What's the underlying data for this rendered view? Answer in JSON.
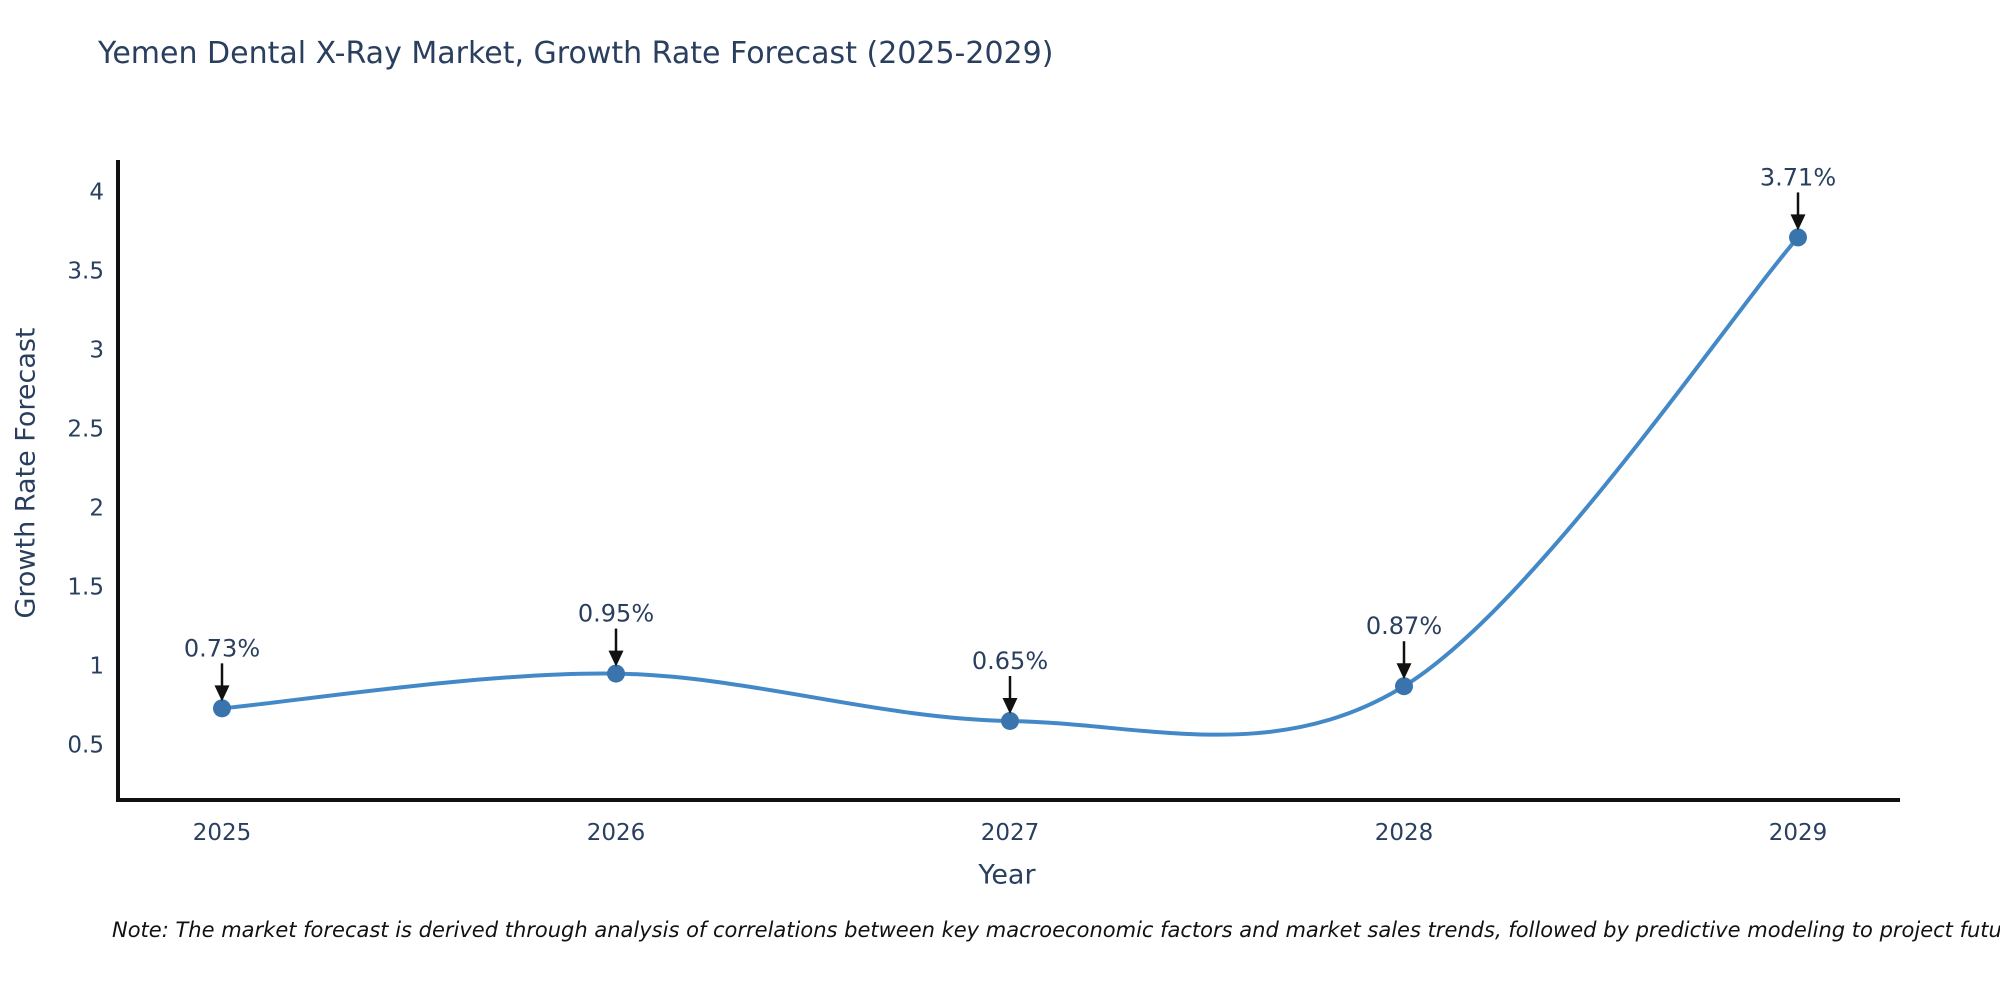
{
  "title": "Yemen Dental X-Ray Market, Growth Rate Forecast (2025-2029)",
  "note": "Note: The market forecast is derived through analysis of correlations between key macroeconomic factors and market sales trends, followed by predictive modeling to project future sales",
  "chart_data": {
    "type": "line",
    "line_shape": "spline",
    "title": "Yemen Dental X-Ray Market, Growth Rate Forecast (2025-2029)",
    "xlabel": "Year",
    "ylabel": "Growth Rate Forecast",
    "categories": [
      "2025",
      "2026",
      "2027",
      "2028",
      "2029"
    ],
    "values": [
      0.73,
      0.95,
      0.65,
      0.87,
      3.71
    ],
    "point_labels": [
      "0.73%",
      "0.95%",
      "0.65%",
      "0.87%",
      "3.71%"
    ],
    "y_ticks": [
      0.5,
      1,
      1.5,
      2,
      2.5,
      3,
      3.5,
      4
    ],
    "ylim": [
      0.15,
      4.2
    ],
    "grid": false,
    "legend_position": "none",
    "colors": {
      "line": "#4389c8",
      "marker": "#3a74ad",
      "axis": "#111111",
      "arrow": "#111111",
      "text": "#2a3f5f"
    }
  }
}
